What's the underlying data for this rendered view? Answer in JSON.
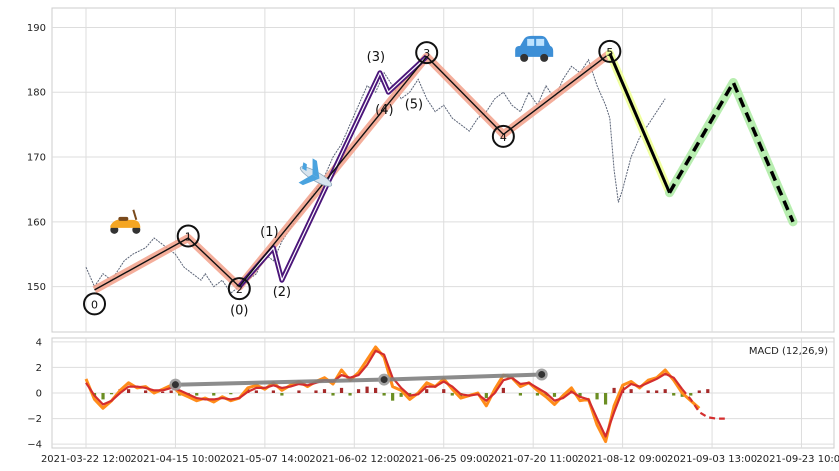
{
  "chart_data": [
    {
      "type": "line",
      "panel": "price",
      "ylim": [
        143,
        193
      ],
      "y_ticks": [
        "150",
        "160",
        "170",
        "180",
        "190"
      ],
      "grid": true,
      "price_series_color": "#5b6477",
      "price_points": [
        [
          0,
          153
        ],
        [
          2,
          150
        ],
        [
          4,
          152
        ],
        [
          6,
          151
        ],
        [
          9,
          154
        ],
        [
          11,
          155
        ],
        [
          14,
          156
        ],
        [
          16,
          157.5
        ],
        [
          19,
          156
        ],
        [
          21,
          155
        ],
        [
          23,
          153
        ],
        [
          25,
          152
        ],
        [
          27,
          151
        ],
        [
          28,
          152
        ],
        [
          30,
          150
        ],
        [
          32,
          151
        ],
        [
          34,
          149
        ],
        [
          36,
          150
        ],
        [
          38,
          151
        ],
        [
          40,
          152
        ],
        [
          42,
          155
        ],
        [
          44,
          154
        ],
        [
          46,
          157
        ],
        [
          48,
          159
        ],
        [
          50,
          161
        ],
        [
          52,
          163
        ],
        [
          54,
          165
        ],
        [
          56,
          167
        ],
        [
          58,
          170
        ],
        [
          60,
          172
        ],
        [
          62,
          175
        ],
        [
          64,
          178
        ],
        [
          66,
          181
        ],
        [
          68,
          180
        ],
        [
          70,
          183
        ],
        [
          72,
          181
        ],
        [
          74,
          179
        ],
        [
          76,
          180
        ],
        [
          78,
          182
        ],
        [
          80,
          179
        ],
        [
          82,
          177
        ],
        [
          84,
          178
        ],
        [
          86,
          176
        ],
        [
          88,
          175
        ],
        [
          90,
          174
        ],
        [
          92,
          176
        ],
        [
          94,
          177
        ],
        [
          96,
          179
        ],
        [
          98,
          180
        ],
        [
          100,
          178
        ],
        [
          102,
          177
        ],
        [
          104,
          180
        ],
        [
          106,
          178
        ],
        [
          108,
          181
        ],
        [
          110,
          179
        ],
        [
          112,
          182
        ],
        [
          114,
          184
        ],
        [
          116,
          183
        ],
        [
          118,
          185
        ],
        [
          120,
          181
        ],
        [
          122,
          178
        ],
        [
          123,
          176
        ],
        [
          124,
          168
        ],
        [
          125,
          163
        ],
        [
          126,
          165
        ],
        [
          128,
          170
        ],
        [
          130,
          173
        ],
        [
          132,
          175
        ],
        [
          134,
          177
        ],
        [
          136,
          179
        ]
      ],
      "wave_main": {
        "points": [
          [
            2,
            149.5
          ],
          [
            24,
            157.5
          ],
          [
            36,
            150
          ],
          [
            80,
            185.5
          ],
          [
            98,
            173.5
          ],
          [
            123,
            186
          ]
        ],
        "labels": [
          "0",
          "1",
          "2",
          "3",
          "4",
          "5"
        ],
        "color": "#f2a08a"
      },
      "wave_sub": {
        "points": [
          [
            36,
            150
          ],
          [
            44,
            156
          ],
          [
            46,
            151
          ],
          [
            69,
            183
          ],
          [
            71,
            180
          ],
          [
            80,
            185.5
          ]
        ],
        "labels": [
          "(0)",
          "(1)",
          "(2)",
          "(3)",
          "(4)",
          "(5)"
        ],
        "color": "#4b167a"
      },
      "forecast": {
        "solid": [
          [
            123,
            186
          ],
          [
            137,
            164.5
          ]
        ],
        "dashed": [
          [
            137,
            164.5
          ],
          [
            152,
            181.5
          ],
          [
            166,
            160
          ]
        ],
        "color": "#000000",
        "glow_solid": "#f0ffa0",
        "glow_dashed": "#b8eeb0"
      },
      "icons": [
        "scooter-icon",
        "airplane-icon",
        "car-icon"
      ]
    },
    {
      "type": "line",
      "panel": "macd",
      "legend": "MACD (12,26,9)",
      "ylim": [
        -4.3,
        4.3
      ],
      "y_ticks": [
        "4",
        "2",
        "0",
        "−2",
        "−4"
      ],
      "x_ticks": [
        "2021-03-22 12:00",
        "2021-04-15 10:00",
        "2021-05-07 14:00",
        "2021-06-02 12:00",
        "2021-06-25 09:00",
        "2021-07-20 11:00",
        "2021-08-12 09:00",
        "2021-09-03 13:00",
        "2021-09-23 10:00"
      ],
      "macd_color": "#ff8c1a",
      "signal_color": "#d42e2e",
      "hist_pos_color": "#a52a2a",
      "hist_neg_color": "#6b8e23",
      "trendline": {
        "points": [
          [
            21,
            0.65
          ],
          [
            70,
            1.05
          ],
          [
            107,
            1.45
          ]
        ],
        "color": "#808080"
      },
      "macd_points": [
        [
          0,
          1.1
        ],
        [
          2,
          -0.5
        ],
        [
          4,
          -1.2
        ],
        [
          6,
          -0.6
        ],
        [
          8,
          0.2
        ],
        [
          10,
          0.8
        ],
        [
          12,
          0.4
        ],
        [
          14,
          0.5
        ],
        [
          16,
          0.0
        ],
        [
          18,
          0.3
        ],
        [
          20,
          0.6
        ],
        [
          22,
          0.0
        ],
        [
          24,
          -0.3
        ],
        [
          26,
          -0.6
        ],
        [
          28,
          -0.4
        ],
        [
          30,
          -0.7
        ],
        [
          32,
          -0.3
        ],
        [
          34,
          -0.6
        ],
        [
          36,
          -0.4
        ],
        [
          38,
          0.4
        ],
        [
          40,
          0.6
        ],
        [
          42,
          0.3
        ],
        [
          44,
          0.8
        ],
        [
          46,
          0.2
        ],
        [
          48,
          0.6
        ],
        [
          50,
          0.9
        ],
        [
          52,
          0.5
        ],
        [
          54,
          0.9
        ],
        [
          56,
          1.2
        ],
        [
          58,
          0.7
        ],
        [
          60,
          1.8
        ],
        [
          62,
          1.0
        ],
        [
          64,
          1.6
        ],
        [
          66,
          2.6
        ],
        [
          68,
          3.6
        ],
        [
          70,
          2.8
        ],
        [
          72,
          0.5
        ],
        [
          74,
          0.2
        ],
        [
          76,
          -0.5
        ],
        [
          78,
          0.0
        ],
        [
          80,
          0.8
        ],
        [
          82,
          0.5
        ],
        [
          84,
          1.1
        ],
        [
          86,
          0.3
        ],
        [
          88,
          -0.4
        ],
        [
          90,
          -0.2
        ],
        [
          92,
          0.0
        ],
        [
          94,
          -1.0
        ],
        [
          96,
          0.3
        ],
        [
          98,
          1.4
        ],
        [
          100,
          1.2
        ],
        [
          102,
          0.5
        ],
        [
          104,
          0.8
        ],
        [
          106,
          0.2
        ],
        [
          108,
          -0.3
        ],
        [
          110,
          -0.9
        ],
        [
          112,
          -0.2
        ],
        [
          114,
          0.4
        ],
        [
          116,
          -0.6
        ],
        [
          118,
          -0.5
        ],
        [
          120,
          -2.5
        ],
        [
          122,
          -3.8
        ],
        [
          124,
          -1.0
        ],
        [
          126,
          0.6
        ],
        [
          128,
          0.9
        ],
        [
          130,
          0.4
        ],
        [
          132,
          1.0
        ],
        [
          134,
          1.2
        ],
        [
          136,
          1.8
        ],
        [
          138,
          1.0
        ],
        [
          140,
          0.0
        ],
        [
          142,
          -0.6
        ],
        [
          144,
          -1.2
        ]
      ],
      "signal_points": [
        [
          0,
          0.8
        ],
        [
          2,
          -0.2
        ],
        [
          4,
          -0.9
        ],
        [
          6,
          -0.6
        ],
        [
          8,
          0.0
        ],
        [
          10,
          0.5
        ],
        [
          12,
          0.5
        ],
        [
          14,
          0.4
        ],
        [
          16,
          0.2
        ],
        [
          18,
          0.2
        ],
        [
          20,
          0.4
        ],
        [
          22,
          0.2
        ],
        [
          24,
          -0.1
        ],
        [
          26,
          -0.4
        ],
        [
          28,
          -0.5
        ],
        [
          30,
          -0.5
        ],
        [
          32,
          -0.4
        ],
        [
          34,
          -0.5
        ],
        [
          36,
          -0.4
        ],
        [
          38,
          0.1
        ],
        [
          40,
          0.4
        ],
        [
          42,
          0.4
        ],
        [
          44,
          0.6
        ],
        [
          46,
          0.4
        ],
        [
          48,
          0.5
        ],
        [
          50,
          0.7
        ],
        [
          52,
          0.6
        ],
        [
          54,
          0.8
        ],
        [
          56,
          1.0
        ],
        [
          58,
          0.9
        ],
        [
          60,
          1.4
        ],
        [
          62,
          1.2
        ],
        [
          64,
          1.4
        ],
        [
          66,
          2.2
        ],
        [
          68,
          3.3
        ],
        [
          70,
          3.0
        ],
        [
          72,
          1.2
        ],
        [
          74,
          0.4
        ],
        [
          76,
          -0.2
        ],
        [
          78,
          -0.1
        ],
        [
          80,
          0.5
        ],
        [
          82,
          0.5
        ],
        [
          84,
          0.9
        ],
        [
          86,
          0.5
        ],
        [
          88,
          -0.1
        ],
        [
          90,
          -0.2
        ],
        [
          92,
          -0.1
        ],
        [
          94,
          -0.6
        ],
        [
          96,
          0.0
        ],
        [
          98,
          1.0
        ],
        [
          100,
          1.2
        ],
        [
          102,
          0.7
        ],
        [
          104,
          0.8
        ],
        [
          106,
          0.4
        ],
        [
          108,
          0.0
        ],
        [
          110,
          -0.6
        ],
        [
          112,
          -0.4
        ],
        [
          114,
          0.1
        ],
        [
          116,
          -0.3
        ],
        [
          118,
          -0.5
        ],
        [
          120,
          -2.0
        ],
        [
          122,
          -3.4
        ],
        [
          124,
          -1.5
        ],
        [
          126,
          0.2
        ],
        [
          128,
          0.7
        ],
        [
          130,
          0.5
        ],
        [
          132,
          0.8
        ],
        [
          134,
          1.1
        ],
        [
          136,
          1.5
        ],
        [
          138,
          1.2
        ],
        [
          140,
          0.3
        ],
        [
          142,
          -0.5
        ],
        [
          144,
          -1.5
        ],
        [
          146,
          -1.9
        ],
        [
          148,
          -2.0
        ],
        [
          150,
          -2.0
        ]
      ],
      "histogram": [
        [
          2,
          -0.4
        ],
        [
          4,
          -0.5
        ],
        [
          6,
          -0.1
        ],
        [
          8,
          0.3
        ],
        [
          10,
          0.3
        ],
        [
          14,
          0.2
        ],
        [
          18,
          0.1
        ],
        [
          20,
          0.2
        ],
        [
          22,
          -0.2
        ],
        [
          24,
          -0.2
        ],
        [
          26,
          -0.2
        ],
        [
          30,
          -0.2
        ],
        [
          34,
          -0.1
        ],
        [
          38,
          0.3
        ],
        [
          40,
          0.2
        ],
        [
          44,
          0.2
        ],
        [
          46,
          -0.2
        ],
        [
          50,
          0.2
        ],
        [
          54,
          0.2
        ],
        [
          56,
          0.3
        ],
        [
          58,
          -0.2
        ],
        [
          60,
          0.4
        ],
        [
          62,
          -0.2
        ],
        [
          64,
          0.3
        ],
        [
          66,
          0.5
        ],
        [
          68,
          0.4
        ],
        [
          70,
          -0.2
        ],
        [
          72,
          -0.6
        ],
        [
          74,
          -0.3
        ],
        [
          76,
          -0.3
        ],
        [
          80,
          0.3
        ],
        [
          84,
          0.3
        ],
        [
          86,
          -0.2
        ],
        [
          88,
          -0.3
        ],
        [
          94,
          -0.4
        ],
        [
          96,
          0.3
        ],
        [
          98,
          0.4
        ],
        [
          102,
          -0.2
        ],
        [
          106,
          -0.2
        ],
        [
          108,
          -0.3
        ],
        [
          110,
          -0.3
        ],
        [
          114,
          0.3
        ],
        [
          116,
          -0.3
        ],
        [
          120,
          -0.5
        ],
        [
          122,
          -0.9
        ],
        [
          124,
          0.4
        ],
        [
          126,
          0.5
        ],
        [
          128,
          0.3
        ],
        [
          132,
          0.2
        ],
        [
          134,
          0.2
        ],
        [
          136,
          0.3
        ],
        [
          138,
          -0.2
        ],
        [
          140,
          -0.3
        ],
        [
          142,
          -0.2
        ],
        [
          144,
          0.2
        ],
        [
          146,
          0.3
        ]
      ]
    }
  ]
}
